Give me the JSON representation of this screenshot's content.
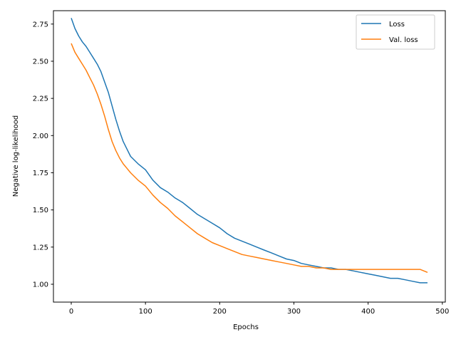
{
  "chart_data": {
    "type": "line",
    "title": "",
    "xlabel": "Epochs",
    "ylabel": "Negative log-likelihood",
    "xlim": [
      -24,
      504
    ],
    "ylim": [
      0.88,
      2.84
    ],
    "x_ticks": [
      0,
      100,
      200,
      300,
      400,
      500
    ],
    "y_ticks": [
      1.0,
      1.25,
      1.5,
      1.75,
      2.0,
      2.25,
      2.5,
      2.75
    ],
    "x_tick_labels": [
      "0",
      "100",
      "200",
      "300",
      "400",
      "500"
    ],
    "y_tick_labels": [
      "1.00",
      "1.25",
      "1.50",
      "1.75",
      "2.00",
      "2.25",
      "2.50",
      "2.75"
    ],
    "grid": false,
    "legend_position": "top-right",
    "series": [
      {
        "name": "Loss",
        "color": "#1f77b4",
        "x": [
          0,
          5,
          10,
          15,
          20,
          25,
          30,
          35,
          40,
          45,
          50,
          55,
          60,
          65,
          70,
          75,
          80,
          90,
          100,
          110,
          120,
          130,
          140,
          150,
          160,
          170,
          180,
          190,
          200,
          210,
          220,
          230,
          240,
          250,
          260,
          270,
          280,
          290,
          300,
          310,
          320,
          330,
          340,
          350,
          360,
          370,
          380,
          390,
          400,
          410,
          420,
          430,
          440,
          450,
          460,
          470,
          480
        ],
        "y": [
          2.79,
          2.72,
          2.67,
          2.63,
          2.6,
          2.56,
          2.52,
          2.48,
          2.43,
          2.36,
          2.29,
          2.2,
          2.11,
          2.03,
          1.96,
          1.91,
          1.86,
          1.81,
          1.77,
          1.7,
          1.65,
          1.62,
          1.58,
          1.55,
          1.51,
          1.47,
          1.44,
          1.41,
          1.38,
          1.34,
          1.31,
          1.29,
          1.27,
          1.25,
          1.23,
          1.21,
          1.19,
          1.17,
          1.16,
          1.14,
          1.13,
          1.12,
          1.11,
          1.11,
          1.1,
          1.1,
          1.09,
          1.08,
          1.07,
          1.06,
          1.05,
          1.04,
          1.04,
          1.03,
          1.02,
          1.01,
          1.01
        ]
      },
      {
        "name": "Val. loss",
        "color": "#ff7f0e",
        "x": [
          0,
          5,
          10,
          15,
          20,
          25,
          30,
          35,
          40,
          45,
          50,
          55,
          60,
          65,
          70,
          75,
          80,
          90,
          100,
          110,
          120,
          130,
          140,
          150,
          160,
          170,
          180,
          190,
          200,
          210,
          220,
          230,
          240,
          250,
          260,
          270,
          280,
          290,
          300,
          310,
          320,
          330,
          340,
          350,
          360,
          370,
          380,
          390,
          400,
          410,
          420,
          430,
          440,
          450,
          460,
          470,
          480
        ],
        "y": [
          2.62,
          2.56,
          2.52,
          2.48,
          2.44,
          2.39,
          2.34,
          2.28,
          2.21,
          2.13,
          2.04,
          1.96,
          1.9,
          1.85,
          1.81,
          1.78,
          1.75,
          1.7,
          1.66,
          1.6,
          1.55,
          1.51,
          1.46,
          1.42,
          1.38,
          1.34,
          1.31,
          1.28,
          1.26,
          1.24,
          1.22,
          1.2,
          1.19,
          1.18,
          1.17,
          1.16,
          1.15,
          1.14,
          1.13,
          1.12,
          1.12,
          1.11,
          1.11,
          1.1,
          1.1,
          1.1,
          1.1,
          1.1,
          1.1,
          1.1,
          1.1,
          1.1,
          1.1,
          1.1,
          1.1,
          1.1,
          1.08
        ]
      }
    ]
  }
}
